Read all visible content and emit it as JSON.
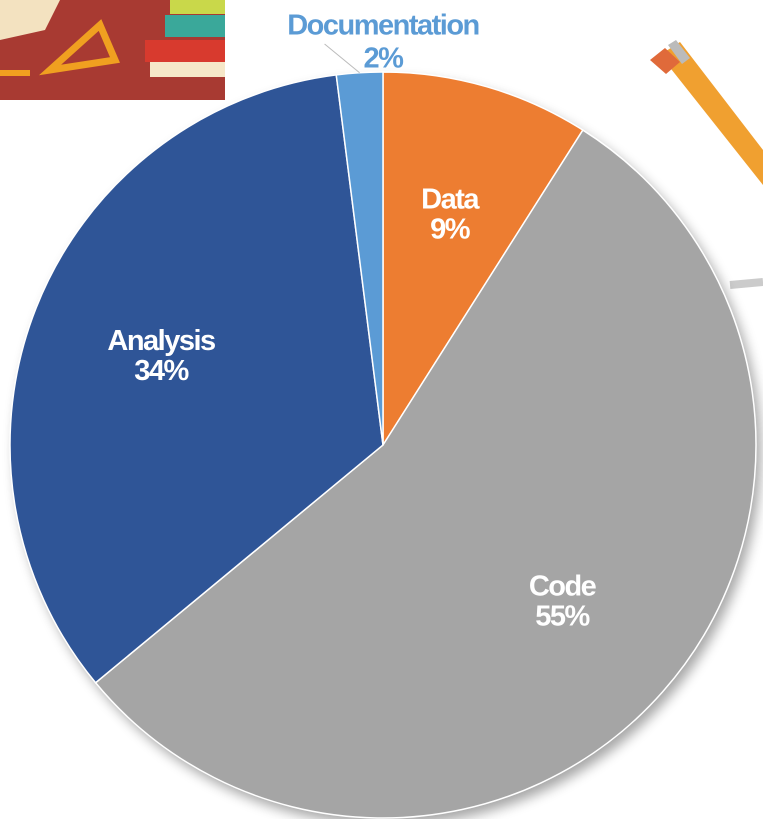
{
  "chart_data": {
    "type": "pie",
    "categories": [
      "Data",
      "Code",
      "Analysis",
      "Documentation"
    ],
    "values": [
      9,
      55,
      34,
      2
    ],
    "value_labels": [
      "9%",
      "55%",
      "34%",
      "2%"
    ],
    "colors": [
      "#ed7d31",
      "#a5a5a5",
      "#2f5597",
      "#5b9bd5"
    ]
  }
}
